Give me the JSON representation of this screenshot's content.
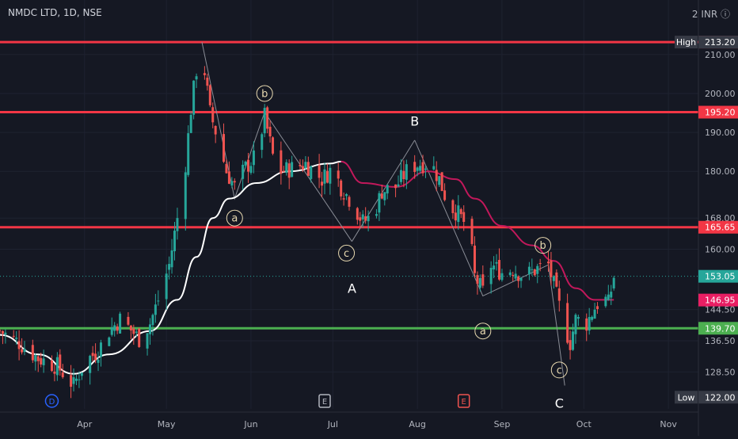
{
  "header": {
    "symbol_title": "NMDC LTD, 1D, NSE",
    "settings_label": "2 INR ⓘ"
  },
  "colors": {
    "background": "#151823",
    "grid": "#1e2230",
    "up": "#26a69a",
    "down": "#ef5350",
    "red_line": "#f23645",
    "green_line": "#4caf50",
    "wave_line": "#8a8d96",
    "ma_white": "#ffffff",
    "ma_pink": "#c2185b",
    "label_badge": "#363a45",
    "last_price": "#26a69a",
    "current_ma": "#e91e63",
    "axis_text": "#b2b5be",
    "wave_label": "#e8d9b0"
  },
  "chart_data": {
    "type": "candlestick",
    "title": "NMDC LTD, 1D, NSE",
    "currency": "INR",
    "ylim": [
      119,
      224
    ],
    "x_range": [
      "2023-03-01",
      "2023-11-12"
    ],
    "x_tick_labels": [
      {
        "date": "2023-04-01",
        "label": "Apr"
      },
      {
        "date": "2023-05-01",
        "label": "May"
      },
      {
        "date": "2023-06-01",
        "label": "Jun"
      },
      {
        "date": "2023-07-01",
        "label": "Jul"
      },
      {
        "date": "2023-08-01",
        "label": "Aug"
      },
      {
        "date": "2023-09-01",
        "label": "Sep"
      },
      {
        "date": "2023-10-01",
        "label": "Oct"
      },
      {
        "date": "2023-11-01",
        "label": "Nov"
      }
    ],
    "y_tick_labels": [
      "210.00",
      "200.00",
      "190.00",
      "180.00",
      "168.00",
      "160.00",
      "144.50",
      "136.50",
      "128.50"
    ],
    "y_tick_values": [
      210,
      200,
      190,
      180,
      168,
      160,
      144.5,
      136.5,
      128.5
    ],
    "horizontal_levels": [
      {
        "value": 213.2,
        "label": "213.20",
        "color": "#f23645"
      },
      {
        "value": 195.2,
        "label": "195.20",
        "color": "#f23645"
      },
      {
        "value": 165.65,
        "label": "165.65",
        "color": "#f23645"
      },
      {
        "value": 139.7,
        "label": "139.70",
        "color": "#4caf50"
      }
    ],
    "price_badges": [
      {
        "value": 213.2,
        "label": "213.20",
        "tag": "High",
        "color": "#363a45"
      },
      {
        "value": 122.0,
        "label": "122.00",
        "tag": "Low",
        "color": "#363a45"
      },
      {
        "value": 153.05,
        "label": "153.05",
        "color": "#26a69a"
      },
      {
        "value": 146.95,
        "label": "146.95",
        "color": "#e91e63"
      }
    ],
    "price_path": [
      {
        "date": "2023-03-01",
        "close": 139
      },
      {
        "date": "2023-03-08",
        "close": 136
      },
      {
        "date": "2023-03-15",
        "close": 132
      },
      {
        "date": "2023-03-22",
        "close": 130
      },
      {
        "date": "2023-03-28",
        "close": 125
      },
      {
        "date": "2023-04-01",
        "close": 131
      },
      {
        "date": "2023-04-06",
        "close": 134
      },
      {
        "date": "2023-04-10",
        "close": 139
      },
      {
        "date": "2023-04-14",
        "close": 142
      },
      {
        "date": "2023-04-17",
        "close": 140
      },
      {
        "date": "2023-04-21",
        "close": 137
      },
      {
        "date": "2023-04-25",
        "close": 141
      },
      {
        "date": "2023-04-28",
        "close": 147
      },
      {
        "date": "2023-05-02",
        "close": 156
      },
      {
        "date": "2023-05-05",
        "close": 168
      },
      {
        "date": "2023-05-08",
        "close": 182
      },
      {
        "date": "2023-05-10",
        "close": 196
      },
      {
        "date": "2023-05-12",
        "close": 206
      },
      {
        "date": "2023-05-14",
        "close": 211
      },
      {
        "date": "2023-05-17",
        "close": 195
      },
      {
        "date": "2023-05-20",
        "close": 188
      },
      {
        "date": "2023-05-23",
        "close": 180
      },
      {
        "date": "2023-05-26",
        "close": 176
      },
      {
        "date": "2023-05-30",
        "close": 181
      },
      {
        "date": "2023-06-03",
        "close": 184
      },
      {
        "date": "2023-06-06",
        "close": 194
      },
      {
        "date": "2023-06-09",
        "close": 184
      },
      {
        "date": "2023-06-12",
        "close": 180
      },
      {
        "date": "2023-06-17",
        "close": 181
      },
      {
        "date": "2023-06-21",
        "close": 182
      },
      {
        "date": "2023-06-27",
        "close": 178
      },
      {
        "date": "2023-07-01",
        "close": 181
      },
      {
        "date": "2023-07-04",
        "close": 176
      },
      {
        "date": "2023-07-08",
        "close": 172
      },
      {
        "date": "2023-07-12",
        "close": 167
      },
      {
        "date": "2023-07-16",
        "close": 169
      },
      {
        "date": "2023-07-19",
        "close": 175
      },
      {
        "date": "2023-07-24",
        "close": 176
      },
      {
        "date": "2023-07-29",
        "close": 181
      },
      {
        "date": "2023-08-02",
        "close": 182
      },
      {
        "date": "2023-08-06",
        "close": 182
      },
      {
        "date": "2023-08-09",
        "close": 178
      },
      {
        "date": "2023-08-12",
        "close": 172
      },
      {
        "date": "2023-08-16",
        "close": 169
      },
      {
        "date": "2023-08-20",
        "close": 165
      },
      {
        "date": "2023-08-22",
        "close": 153
      },
      {
        "date": "2023-08-25",
        "close": 149
      },
      {
        "date": "2023-08-28",
        "close": 156
      },
      {
        "date": "2023-09-01",
        "close": 154
      },
      {
        "date": "2023-09-05",
        "close": 155
      },
      {
        "date": "2023-09-09",
        "close": 153
      },
      {
        "date": "2023-09-14",
        "close": 155
      },
      {
        "date": "2023-09-18",
        "close": 156
      },
      {
        "date": "2023-09-21",
        "close": 148
      },
      {
        "date": "2023-09-24",
        "close": 140
      },
      {
        "date": "2023-09-26",
        "close": 136
      },
      {
        "date": "2023-09-28",
        "close": 142
      },
      {
        "date": "2023-10-02",
        "close": 141
      },
      {
        "date": "2023-10-05",
        "close": 145
      },
      {
        "date": "2023-10-08",
        "close": 148
      },
      {
        "date": "2023-10-10",
        "close": 146
      },
      {
        "date": "2023-10-12",
        "close": 153
      }
    ],
    "moving_averages": [
      {
        "color": "#ffffff",
        "points": [
          {
            "date": "2023-03-01",
            "value": 138
          },
          {
            "date": "2023-03-15",
            "value": 133
          },
          {
            "date": "2023-03-28",
            "value": 128
          },
          {
            "date": "2023-04-10",
            "value": 133
          },
          {
            "date": "2023-04-25",
            "value": 139
          },
          {
            "date": "2023-05-05",
            "value": 147
          },
          {
            "date": "2023-05-12",
            "value": 158
          },
          {
            "date": "2023-05-18",
            "value": 168
          },
          {
            "date": "2023-05-24",
            "value": 173
          },
          {
            "date": "2023-06-03",
            "value": 177
          },
          {
            "date": "2023-06-15",
            "value": 180
          },
          {
            "date": "2023-06-30",
            "value": 182
          },
          {
            "date": "2023-07-04",
            "value": 182.5
          }
        ]
      },
      {
        "color": "#c2185b",
        "points": [
          {
            "date": "2023-07-04",
            "value": 182.5
          },
          {
            "date": "2023-07-12",
            "value": 177
          },
          {
            "date": "2023-07-24",
            "value": 176
          },
          {
            "date": "2023-08-05",
            "value": 180
          },
          {
            "date": "2023-08-15",
            "value": 178
          },
          {
            "date": "2023-08-22",
            "value": 173
          },
          {
            "date": "2023-09-01",
            "value": 166
          },
          {
            "date": "2023-09-12",
            "value": 161
          },
          {
            "date": "2023-09-20",
            "value": 157
          },
          {
            "date": "2023-09-28",
            "value": 150
          },
          {
            "date": "2023-10-05",
            "value": 147
          },
          {
            "date": "2023-10-12",
            "value": 147
          }
        ]
      }
    ],
    "elliott_waves": [
      {
        "points": [
          {
            "date": "2023-05-14",
            "value": 213.2
          },
          {
            "date": "2023-05-26",
            "value": 173
          },
          {
            "date": "2023-06-06",
            "value": 195.2
          },
          {
            "date": "2023-07-08",
            "value": 162
          }
        ]
      },
      {
        "points": [
          {
            "date": "2023-07-08",
            "value": 162
          },
          {
            "date": "2023-07-31",
            "value": 188
          }
        ]
      },
      {
        "points": [
          {
            "date": "2023-07-31",
            "value": 188
          },
          {
            "date": "2023-08-25",
            "value": 148
          },
          {
            "date": "2023-09-18",
            "value": 156
          },
          {
            "date": "2023-09-24",
            "value": 125
          }
        ]
      }
    ],
    "wave_labels": [
      {
        "text": "b",
        "date": "2023-06-06",
        "value": 200,
        "circled": true
      },
      {
        "text": "a",
        "date": "2023-05-26",
        "value": 168,
        "circled": true
      },
      {
        "text": "c",
        "date": "2023-07-06",
        "value": 159,
        "circled": true
      },
      {
        "text": "A",
        "date": "2023-07-08",
        "value": 150,
        "circled": false
      },
      {
        "text": "B",
        "date": "2023-07-31",
        "value": 193,
        "circled": false
      },
      {
        "text": "a",
        "date": "2023-08-25",
        "value": 139,
        "circled": true
      },
      {
        "text": "b",
        "date": "2023-09-16",
        "value": 161,
        "circled": true
      },
      {
        "text": "c",
        "date": "2023-09-22",
        "value": 129,
        "circled": true
      },
      {
        "text": "C",
        "date": "2023-09-22",
        "value": 120.5,
        "circled": false
      }
    ],
    "event_markers": [
      {
        "text": "D",
        "date": "2023-03-20",
        "color": "#2962ff",
        "shape": "circle"
      },
      {
        "text": "E",
        "date": "2023-06-28",
        "color": "#b2b5be",
        "shape": "square"
      },
      {
        "text": "E",
        "date": "2023-08-18",
        "color": "#ef5350",
        "shape": "square"
      }
    ]
  }
}
